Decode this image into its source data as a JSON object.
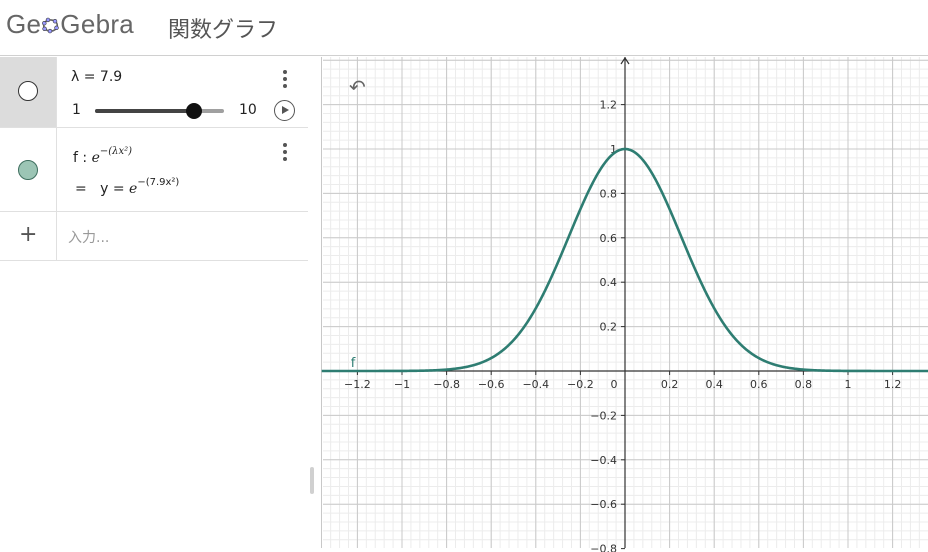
{
  "header": {
    "logo_text_left": "Ge",
    "logo_text_right": "Gebra",
    "title": "関数グラフ"
  },
  "algebra": {
    "slider": {
      "definition": "λ = 7.9",
      "min_label": "1",
      "max_label": "10",
      "min": 1,
      "max": 10,
      "value": 7.9
    },
    "function": {
      "name": "f",
      "sep": ":",
      "def_base": "e",
      "def_exponent": "−(λx²)",
      "equals": "=",
      "value_prefix": "y =",
      "value_base": "e",
      "value_exponent": "−(7.9x²)",
      "color": "#9cc5b5"
    },
    "input_placeholder": "入力..."
  },
  "graph": {
    "curve_color": "#2e7d72",
    "curve_label": "f",
    "x_ticks": [
      "−1.2",
      "−1",
      "−0.8",
      "−0.6",
      "−0.4",
      "−0.2",
      "0.2",
      "0.4",
      "0.6",
      "0.8",
      "1",
      "1.2"
    ],
    "y_ticks": [
      "1.2",
      "1",
      "0.8",
      "0.6",
      "0.4",
      "0.2",
      "−0.2",
      "−0.4",
      "−0.6",
      "−0.8"
    ],
    "origin_label": "0"
  },
  "chart_data": {
    "type": "line",
    "function": "y = e^(-(7.9x^2))",
    "xlim": [
      -1.36,
      1.36
    ],
    "ylim": [
      -0.8,
      1.4
    ],
    "grid": true,
    "series": [
      {
        "name": "f",
        "x": [
          -1.3,
          -1.2,
          -1.0,
          -0.8,
          -0.6,
          -0.5,
          -0.4,
          -0.3,
          -0.2,
          -0.1,
          0,
          0.1,
          0.2,
          0.3,
          0.4,
          0.5,
          0.6,
          0.8,
          1.0,
          1.2,
          1.3
        ],
        "y": [
          0.0,
          0.0,
          0.0004,
          0.0064,
          0.058,
          0.139,
          0.282,
          0.491,
          0.729,
          0.924,
          1.0,
          0.924,
          0.729,
          0.491,
          0.282,
          0.139,
          0.058,
          0.0064,
          0.0004,
          0.0,
          0.0
        ]
      }
    ]
  }
}
